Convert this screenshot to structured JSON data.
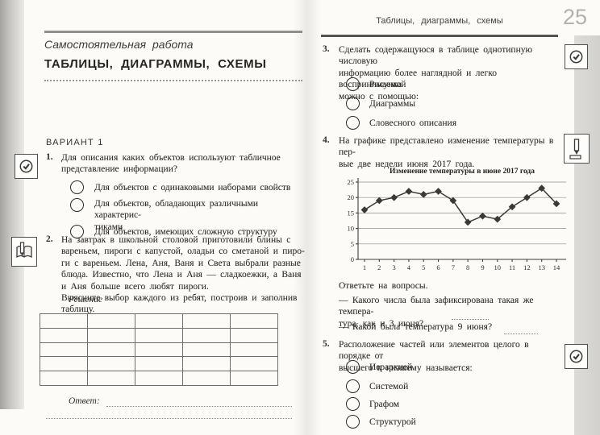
{
  "left_page": {
    "subtitle": "Самостоятельная работа",
    "title": "ТАБЛИЦЫ, ДИАГРАММЫ, СХЕМЫ",
    "variant": "ВАРИАНТ 1",
    "q1": {
      "num": "1.",
      "text": "Для описания каких объектов используют табличное\nпредставление информации?",
      "options": [
        "Для объектов с одинаковыми наборами свойств",
        "Для объектов, обладающих различными характерис-\nтиками",
        "Для объектов, имеющих сложную структуру"
      ]
    },
    "q2": {
      "num": "2.",
      "text": "На завтрак в школьной столовой приготовили блины с\nвареньем, пироги с капустой, оладьи со сметаной и пиро-\nги с вареньем. Лена, Аня, Ваня и Света выбрали разные\nблюда. Известно, что Лена и Аня — сладкоежки, а Ваня\nи Аня больше всего любят пироги.\nВыясните выбор каждого из ребят, построив и заполнив\nтаблицу.",
      "solution_label": "Решение",
      "answer_label": "Ответ:"
    }
  },
  "right_page": {
    "running_header": "Таблицы, диаграммы, схемы",
    "page_number": "25",
    "q3": {
      "num": "3.",
      "text": "Сделать содержащуюся в таблице однотипную числовую\nинформацию более наглядной и легко воспринимаемой\nможно с помощью:",
      "options": [
        "Рисунка",
        "Диаграммы",
        "Словесного описания"
      ]
    },
    "q4": {
      "num": "4.",
      "text": "На графике представлено изменение температуры в пер-\nвые две недели июня 2017 года.",
      "questions_intro": "Ответьте на вопросы.",
      "question_a": "— Какого числа была зафиксирована такая же темпера-\nтура, как и 3 июня?",
      "question_b": "— Какой была температура 9 июня?"
    },
    "q5": {
      "num": "5.",
      "text": "Расположение частей или элементов целого в порядке от\nвысшего к низшему называется:",
      "options": [
        "Иерархией",
        "Системой",
        "Графом",
        "Структурой"
      ]
    }
  },
  "chart_data": {
    "type": "line",
    "title": "Изменение температуры в июне 2017 года",
    "x": [
      1,
      2,
      3,
      4,
      5,
      6,
      7,
      8,
      9,
      10,
      11,
      12,
      13,
      14
    ],
    "values": [
      16,
      19,
      20,
      22,
      21,
      22,
      19,
      12,
      14,
      13,
      17,
      20,
      23,
      18
    ],
    "xlabel": "",
    "ylabel": "",
    "ylim": [
      0,
      25
    ],
    "ytick_step": 5,
    "grid": true,
    "marker": "diamond",
    "legend": "none",
    "line_color": "#3a3935"
  }
}
